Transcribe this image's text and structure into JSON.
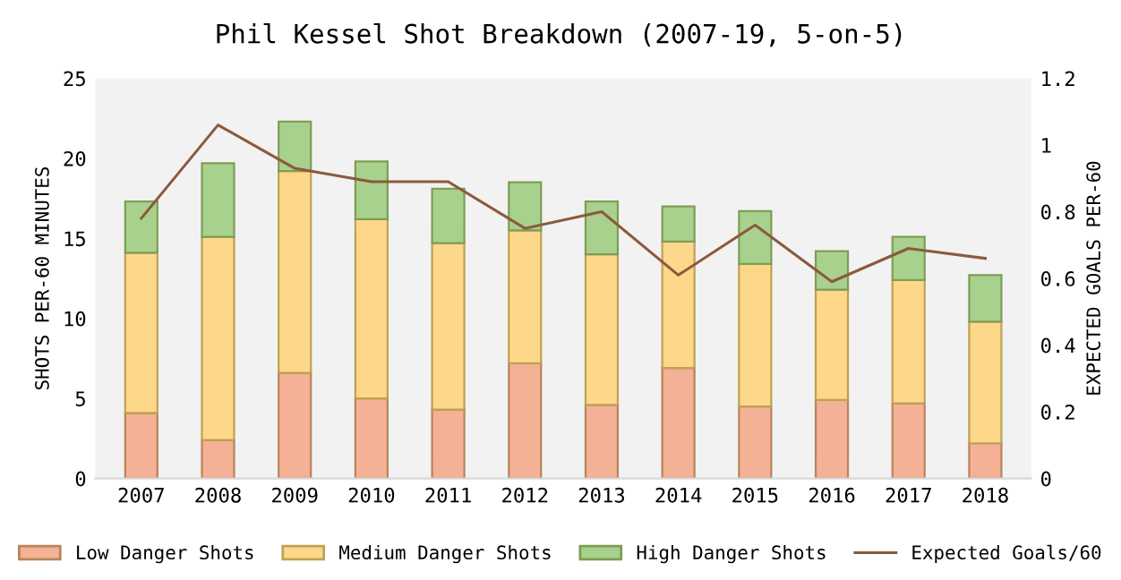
{
  "chart_data": {
    "type": "bar",
    "title": "Phil Kessel Shot Breakdown (2007-19, 5-on-5)",
    "ylabel": "SHOTS PER-60 MINUTES",
    "y2label": "EXPECTED GOALS PER-60",
    "categories": [
      "2007",
      "2008",
      "2009",
      "2010",
      "2011",
      "2012",
      "2013",
      "2014",
      "2015",
      "2016",
      "2017",
      "2018"
    ],
    "stacked": true,
    "series": [
      {
        "name": "Low Danger Shots",
        "color": "#f4b196",
        "values": [
          4.1,
          2.4,
          6.6,
          5.0,
          4.3,
          7.2,
          4.6,
          6.9,
          4.5,
          4.9,
          4.7,
          2.2
        ]
      },
      {
        "name": "Medium Danger Shots",
        "color": "#fed88a",
        "values": [
          10.0,
          12.7,
          12.6,
          11.2,
          10.4,
          8.3,
          9.4,
          7.9,
          8.9,
          6.9,
          7.7,
          7.6
        ]
      },
      {
        "name": "High Danger Shots",
        "color": "#a9d18e",
        "values": [
          3.2,
          4.6,
          3.1,
          3.6,
          3.4,
          3.0,
          3.3,
          2.2,
          3.3,
          2.4,
          2.7,
          2.9
        ]
      },
      {
        "name": "Expected Goals/60",
        "type": "line",
        "axis": "y2",
        "color": "#8b5a3c",
        "values": [
          0.78,
          1.06,
          0.93,
          0.89,
          0.89,
          0.75,
          0.8,
          0.61,
          0.76,
          0.59,
          0.69,
          0.66
        ]
      }
    ],
    "ylim": [
      0,
      25
    ],
    "yticks": [
      0,
      5,
      10,
      15,
      20,
      25
    ],
    "y2lim": [
      0,
      1.2
    ],
    "y2ticks": [
      {
        "value": 0,
        "label": "0"
      },
      {
        "value": 0.2,
        "label": "0.2"
      },
      {
        "value": 0.4,
        "label": "0.4"
      },
      {
        "value": 0.6,
        "label": "0.6"
      },
      {
        "value": 0.8,
        "label": "0.8"
      },
      {
        "value": 1,
        "label": "1"
      },
      {
        "value": 1.2,
        "label": "1.2"
      }
    ],
    "legend": "bottom",
    "grid": false
  }
}
